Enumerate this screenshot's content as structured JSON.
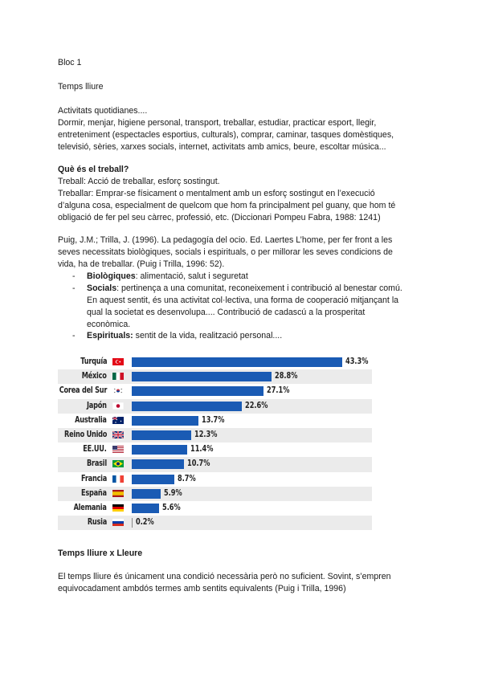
{
  "document": {
    "bloc": "Bloc 1",
    "title": "Temps lliure",
    "activities_heading": "Activitats quotidianes....",
    "activities_lines": [
      "Dormir, menjar, higiene personal, transport, treballar, estudiar, practicar esport, llegir,",
      "entreteniment (espectacles esportius, culturals), comprar, caminar, tasques domèstiques,",
      "televisió, sèries, xarxes socials, internet, activitats amb amics, beure, escoltar música..."
    ],
    "work_heading": "Què és el treball?",
    "work_lines": [
      "Treball: Acció de treballar, esforç sostingut.",
      "Treballar: Emprar-se físicament o mentalment amb un esforç sostingut en l’execució",
      "d’alguna cosa, especialment de quelcom que hom fa principalment pel guany, que hom té",
      "obligació de fer pel seu càrrec, professió, etc. (Diccionari Pompeu Fabra, 1988: 1241)"
    ],
    "puig_lines": [
      "Puig, J.M.; Trilla, J. (1996). La pedagogía del ocio. Ed. Laertes L’home, per fer front a les",
      "seves necessitats biològiques, socials i espirituals, o per millorar les seves condicions de",
      "vida, ha de treballar. (Puig i Trilla, 1996: 52)."
    ],
    "bullets": [
      {
        "dash": "-",
        "term": "Biològiques",
        "lines": [
          ": alimentació, salut i seguretat"
        ]
      },
      {
        "dash": "-",
        "term": "Socials",
        "lines": [
          ": pertinença a una comunitat, reconeixement i contribució al benestar comú.",
          "En aquest sentit, és una activitat col·lectiva, una forma de cooperació mitjançant la",
          "qual la societat es desenvolupa.... Contribució de cadascú a la prosperitat",
          "econòmica."
        ]
      },
      {
        "dash": "-",
        "term": "Espirituals:",
        "lines": [
          " sentit de la vida, realització personal...."
        ]
      }
    ],
    "leisure_heading": "Temps lliure x Lleure",
    "leisure_lines": [
      "El temps lliure és únicament una condició necessària però no suficient. Sovint, s’empren",
      "equivocadament ambdós termes amb sentits equivalents (Puig i Trilla, 1996)"
    ]
  },
  "chart_data": {
    "type": "bar",
    "orientation": "horizontal",
    "title": "",
    "xlabel": "",
    "ylabel": "",
    "categories": [
      "Turquía",
      "México",
      "Corea del Sur",
      "Japón",
      "Australia",
      "Reino Unido",
      "EE.UU.",
      "Brasil",
      "Francia",
      "España",
      "Alemania",
      "Rusia"
    ],
    "values": [
      43.3,
      28.8,
      27.1,
      22.6,
      13.7,
      12.3,
      11.4,
      10.7,
      8.7,
      5.9,
      5.6,
      0.2
    ],
    "value_labels": [
      "43.3%",
      "28.8%",
      "27.1%",
      "22.6%",
      "13.7%",
      "12.3%",
      "11.4%",
      "10.7%",
      "8.7%",
      "5.9%",
      "5.6%",
      "0.2%"
    ],
    "bar_color": "#1a5bb4",
    "grid": false,
    "legend": "none",
    "row_stripes": true
  }
}
